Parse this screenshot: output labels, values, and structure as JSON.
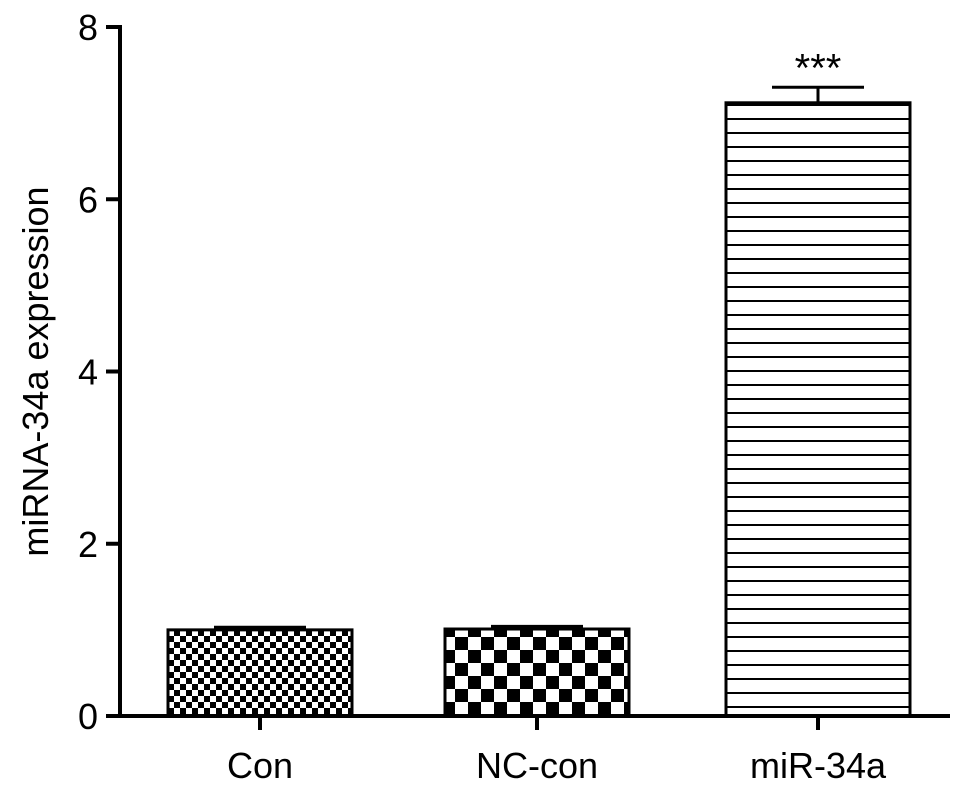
{
  "chart_data": {
    "type": "bar",
    "categories": [
      "Con",
      "NC-con",
      "miR-34a"
    ],
    "values": [
      1.0,
      1.01,
      7.12
    ],
    "errors": [
      0.03,
      0.03,
      0.18
    ],
    "patterns": [
      "fine-checker",
      "coarse-checker",
      "horizontal-lines"
    ],
    "annotations": [
      "",
      "",
      "***"
    ],
    "ylabel": "miRNA-34a expression",
    "xlabel": "",
    "ylim": [
      0,
      8
    ],
    "yticks": [
      "0",
      "2",
      "4",
      "6",
      "8"
    ],
    "grid": false
  }
}
